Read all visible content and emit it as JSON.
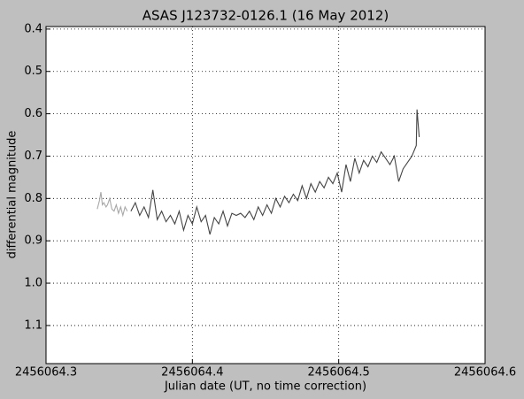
{
  "chart_data": {
    "type": "line",
    "title": "ASAS J123732-0126.1 (16 May 2012)",
    "xlabel": "Julian date (UT, no time correction)",
    "ylabel": "differential magnitude",
    "xlim": [
      2456064.3,
      2456064.6
    ],
    "xticks": [
      2456064.3,
      2456064.4,
      2456064.5,
      2456064.6
    ],
    "ylim": [
      1.19,
      0.394
    ],
    "yticks": [
      0.4,
      0.5,
      0.6,
      0.7,
      0.8,
      0.9,
      {
        "value": 1,
        "label": "1.0"
      },
      1.1
    ],
    "grid": true,
    "series": [
      {
        "color": "#a8a8a8",
        "x": [
          2456064.335,
          2456064.3365,
          2456064.3375,
          2456064.3385,
          2456064.3395,
          2456064.341,
          2456064.342,
          2456064.3435,
          2456064.345,
          2456064.3465,
          2456064.348,
          2456064.3495,
          2456064.351,
          2456064.3525,
          2456064.354,
          2456064.3555
        ],
        "values": [
          0.825,
          0.805,
          0.785,
          0.815,
          0.81,
          0.82,
          0.815,
          0.8,
          0.825,
          0.83,
          0.815,
          0.835,
          0.82,
          0.84,
          0.82,
          0.83
        ]
      },
      {
        "color": "#444444",
        "x": [
          2456064.358,
          2456064.361,
          2456064.364,
          2456064.367,
          2456064.37,
          2456064.373,
          2456064.376,
          2456064.379,
          2456064.382,
          2456064.385,
          2456064.388,
          2456064.391,
          2456064.394,
          2456064.397,
          2456064.4,
          2456064.403,
          2456064.406,
          2456064.409,
          2456064.412,
          2456064.415,
          2456064.418,
          2456064.421,
          2456064.424,
          2456064.427,
          2456064.43,
          2456064.433,
          2456064.436,
          2456064.439,
          2456064.442,
          2456064.445,
          2456064.448,
          2456064.451,
          2456064.454,
          2456064.457,
          2456064.46,
          2456064.463,
          2456064.466,
          2456064.469,
          2456064.472,
          2456064.475,
          2456064.478,
          2456064.481,
          2456064.484,
          2456064.487,
          2456064.49,
          2456064.493,
          2456064.496,
          2456064.499,
          2456064.502,
          2456064.505,
          2456064.508,
          2456064.511,
          2456064.514,
          2456064.517,
          2456064.52,
          2456064.523,
          2456064.526,
          2456064.529,
          2456064.532,
          2456064.535,
          2456064.538,
          2456064.541,
          2456064.544,
          2456064.547,
          2456064.55,
          2456064.553,
          2456064.5535,
          2456064.555
        ],
        "values": [
          0.83,
          0.81,
          0.84,
          0.82,
          0.845,
          0.78,
          0.85,
          0.83,
          0.855,
          0.84,
          0.86,
          0.83,
          0.875,
          0.84,
          0.86,
          0.82,
          0.855,
          0.84,
          0.885,
          0.845,
          0.86,
          0.83,
          0.865,
          0.835,
          0.84,
          0.835,
          0.845,
          0.83,
          0.85,
          0.82,
          0.84,
          0.815,
          0.835,
          0.8,
          0.82,
          0.795,
          0.81,
          0.79,
          0.805,
          0.77,
          0.8,
          0.765,
          0.785,
          0.76,
          0.775,
          0.75,
          0.765,
          0.74,
          0.785,
          0.72,
          0.76,
          0.705,
          0.74,
          0.71,
          0.725,
          0.7,
          0.715,
          0.69,
          0.705,
          0.72,
          0.7,
          0.76,
          0.73,
          0.715,
          0.7,
          0.675,
          0.59,
          0.655
        ]
      }
    ]
  }
}
